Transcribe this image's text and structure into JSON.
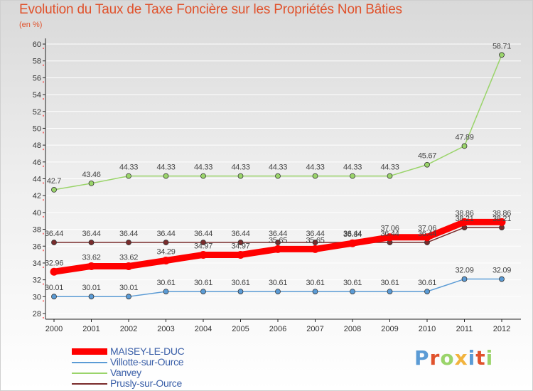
{
  "chart_data": {
    "type": "line",
    "title": "Evolution du Taux de Taxe Foncière sur les Propriétés Non Bâties",
    "unit_label": "(en %)",
    "xlabel": "",
    "ylabel": "",
    "ylim": [
      28,
      60
    ],
    "y_ticks": [
      "28",
      "30",
      "32",
      "34",
      "36",
      "38",
      "40",
      "42",
      "44",
      "46",
      "48",
      "50",
      "52",
      "54",
      "56",
      "58",
      "60"
    ],
    "categories": [
      "2000",
      "2001",
      "2002",
      "2003",
      "2004",
      "2005",
      "2006",
      "2007",
      "2008",
      "2009",
      "2010",
      "2011",
      "2012"
    ],
    "grid": "horizontal",
    "series": [
      {
        "name": "MAISEY-LE-DUC",
        "color": "#ff0000",
        "values": [
          32.96,
          33.62,
          33.62,
          34.29,
          34.97,
          34.97,
          35.65,
          35.65,
          36.34,
          37.06,
          37.06,
          38.86,
          38.86
        ],
        "labels": [
          "32.96",
          "33.62",
          "33.62",
          "34.29",
          "34.97",
          "34.97",
          "35.65",
          "35.65",
          "36.34",
          "37.06",
          "37.06",
          "38.86",
          "38.86"
        ]
      },
      {
        "name": "Villotte-sur-Ource",
        "color": "#5b9bd5",
        "values": [
          30.01,
          30.01,
          30.01,
          30.61,
          30.61,
          30.61,
          30.61,
          30.61,
          30.61,
          30.61,
          30.61,
          32.09,
          32.09
        ],
        "labels": [
          "30.01",
          "30.01",
          "30.01",
          "30.61",
          "30.61",
          "30.61",
          "30.61",
          "30.61",
          "30.61",
          "30.61",
          "30.61",
          "32.09",
          "32.09"
        ]
      },
      {
        "name": "Vanvey",
        "color": "#9ad46a",
        "values": [
          42.7,
          43.46,
          44.33,
          44.33,
          44.33,
          44.33,
          44.33,
          44.33,
          44.33,
          44.33,
          45.67,
          47.89,
          58.71
        ],
        "labels": [
          "42.7",
          "43.46",
          "44.33",
          "44.33",
          "44.33",
          "44.33",
          "44.33",
          "44.33",
          "44.33",
          "44.33",
          "45.67",
          "47.89",
          "58.71"
        ]
      },
      {
        "name": "Prusly-sur-Ource",
        "color": "#7a2c2c",
        "values": [
          36.44,
          36.44,
          36.44,
          36.44,
          36.44,
          36.44,
          36.44,
          36.44,
          36.44,
          36.44,
          36.44,
          38.21,
          38.21
        ],
        "labels": [
          "36.44",
          "36.44",
          "36.44",
          "36.44",
          "36.44",
          "36.44",
          "36.44",
          "36.44",
          "36.44",
          "36.44",
          "36.44",
          "38.21",
          "38.21"
        ]
      }
    ]
  },
  "logo": {
    "text": "Proxiti",
    "colors": [
      "#5b9bd5",
      "#e0522c",
      "#9ad46a",
      "#f2b33d",
      "#5b9bd5",
      "#e0522c",
      "#9ad46a"
    ]
  },
  "colors": {
    "title": "#e0522c",
    "axis": "#222222",
    "grid": "#ffffff",
    "tick_accent": "#ff0000"
  }
}
